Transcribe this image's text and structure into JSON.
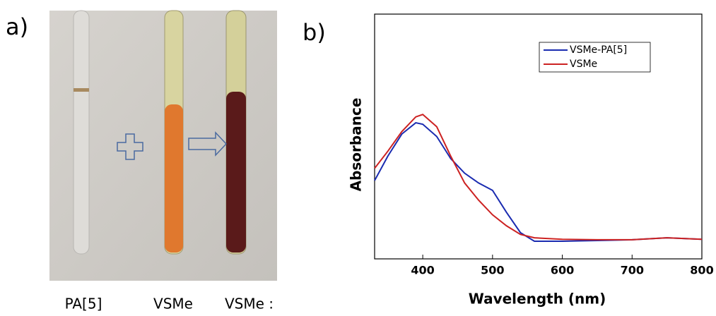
{
  "panel_a": {
    "label": "a)",
    "tube_labels": [
      "PA[5]",
      "VSMe",
      "VSMe :"
    ]
  },
  "chart_data": {
    "type": "line",
    "panel_label": "b)",
    "x_label": "Wavelength (nm)",
    "y_label": "Absorbance",
    "xlim": [
      331,
      800
    ],
    "ylim": [
      0,
      1
    ],
    "xticks": [
      400,
      500,
      600,
      700,
      800
    ],
    "legend": "top right",
    "x": [
      331,
      350,
      370,
      390,
      400,
      420,
      440,
      460,
      480,
      500,
      520,
      540,
      560,
      600,
      650,
      700,
      750,
      800
    ],
    "series": [
      {
        "name": "VSMe-PA[5]",
        "color": "#1a2bb0",
        "values": [
          0.32,
          0.42,
          0.51,
          0.556,
          0.55,
          0.5,
          0.41,
          0.35,
          0.31,
          0.28,
          0.19,
          0.107,
          0.072,
          0.072,
          0.075,
          0.078,
          0.086,
          0.08
        ]
      },
      {
        "name": "VSMe",
        "color": "#cc2222",
        "values": [
          0.37,
          0.44,
          0.52,
          0.58,
          0.59,
          0.54,
          0.42,
          0.31,
          0.24,
          0.18,
          0.135,
          0.1,
          0.086,
          0.08,
          0.078,
          0.078,
          0.086,
          0.08
        ]
      }
    ]
  }
}
